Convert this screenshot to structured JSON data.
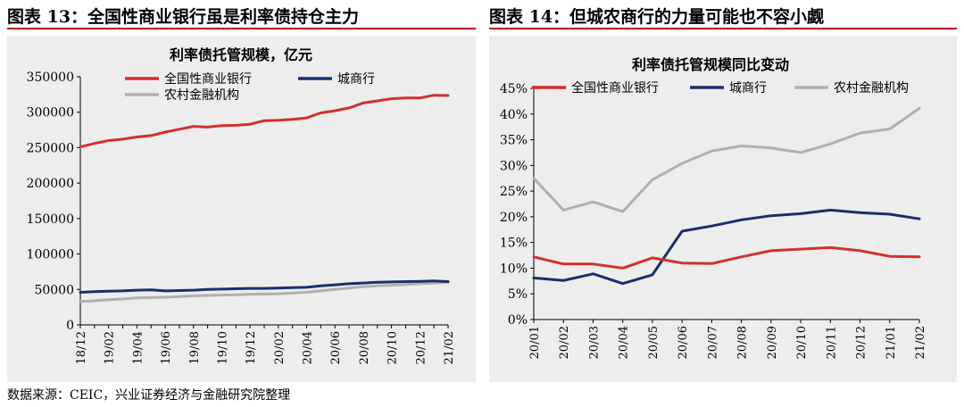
{
  "figures": [
    {
      "label": "图表 13：全国性商业银行虽是利率债持仓主力"
    },
    {
      "label": "图表 14：但城农商行的力量可能也不容小觑"
    }
  ],
  "source": "数据来源：CEIC，兴业证券经济与金融研究院整理",
  "colors": {
    "national": "#d32f2f",
    "city": "#1a2e6e",
    "rural": "#b0b0b0",
    "rule": "#c00000",
    "panel_bg": "#ededed"
  },
  "chart_data": [
    {
      "type": "line",
      "title": "利率债托管规模，亿元",
      "xlabel": "",
      "ylabel": "",
      "ylim": [
        0,
        350000
      ],
      "yticks": [
        "0",
        "50000",
        "100000",
        "150000",
        "200000",
        "250000",
        "300000",
        "350000"
      ],
      "x": [
        "18/12",
        "19/01",
        "19/02",
        "19/03",
        "19/04",
        "19/05",
        "19/06",
        "19/07",
        "19/08",
        "19/09",
        "19/10",
        "19/11",
        "19/12",
        "20/01",
        "20/02",
        "20/03",
        "20/04",
        "20/05",
        "20/06",
        "20/07",
        "20/08",
        "20/09",
        "20/10",
        "20/11",
        "20/12",
        "21/01",
        "21/02"
      ],
      "xtick_labels": [
        "18/12",
        "19/02",
        "19/04",
        "19/06",
        "19/08",
        "19/10",
        "19/12",
        "20/02",
        "20/04",
        "20/06",
        "20/08",
        "20/10",
        "20/12",
        "21/02"
      ],
      "legend": "top-left",
      "series": [
        {
          "name": "全国性商业银行",
          "values": [
            251000,
            256000,
            260000,
            262000,
            265000,
            267000,
            272000,
            276000,
            280000,
            279000,
            281000,
            281500,
            283000,
            288000,
            288500,
            290000,
            292000,
            299000,
            302000,
            306000,
            313000,
            316000,
            319000,
            320000,
            320000,
            324000,
            323500
          ]
        },
        {
          "name": "城商行",
          "values": [
            46000,
            47000,
            47500,
            48000,
            49000,
            49500,
            48000,
            48500,
            49000,
            50000,
            50500,
            51000,
            51500,
            51500,
            52000,
            52500,
            53000,
            55000,
            56500,
            58000,
            59000,
            60000,
            60500,
            61000,
            61500,
            62000,
            61000
          ]
        },
        {
          "name": "农村金融机构",
          "values": [
            33000,
            34000,
            35500,
            36500,
            38000,
            38500,
            39000,
            40000,
            41000,
            41500,
            42000,
            42500,
            43000,
            43500,
            44000,
            45000,
            46000,
            48000,
            50000,
            52000,
            54000,
            55000,
            56000,
            57000,
            58000,
            59000,
            60000
          ]
        }
      ]
    },
    {
      "type": "line",
      "title": "利率债托管规模同比变动",
      "xlabel": "",
      "ylabel": "",
      "ylim": [
        0,
        45
      ],
      "yticks": [
        "0%",
        "5%",
        "10%",
        "15%",
        "20%",
        "25%",
        "30%",
        "35%",
        "40%",
        "45%"
      ],
      "x": [
        "20/01",
        "20/02",
        "20/03",
        "20/04",
        "20/05",
        "20/06",
        "20/07",
        "20/08",
        "20/09",
        "20/10",
        "20/11",
        "20/12",
        "21/01",
        "21/02"
      ],
      "legend": "top",
      "series": [
        {
          "name": "全国性商业银行",
          "values": [
            12.2,
            10.8,
            10.8,
            10.0,
            12.0,
            11.0,
            10.9,
            12.2,
            13.4,
            13.7,
            14.0,
            13.4,
            12.3,
            12.2
          ]
        },
        {
          "name": "城商行",
          "values": [
            8.1,
            7.6,
            8.9,
            7.0,
            8.7,
            17.2,
            18.2,
            19.4,
            20.2,
            20.6,
            21.3,
            20.8,
            20.5,
            19.6
          ]
        },
        {
          "name": "农村金融机构",
          "values": [
            27.5,
            21.3,
            22.9,
            21.0,
            27.2,
            30.4,
            32.8,
            33.8,
            33.4,
            32.5,
            34.2,
            36.3,
            37.1,
            41.1
          ]
        }
      ]
    }
  ]
}
